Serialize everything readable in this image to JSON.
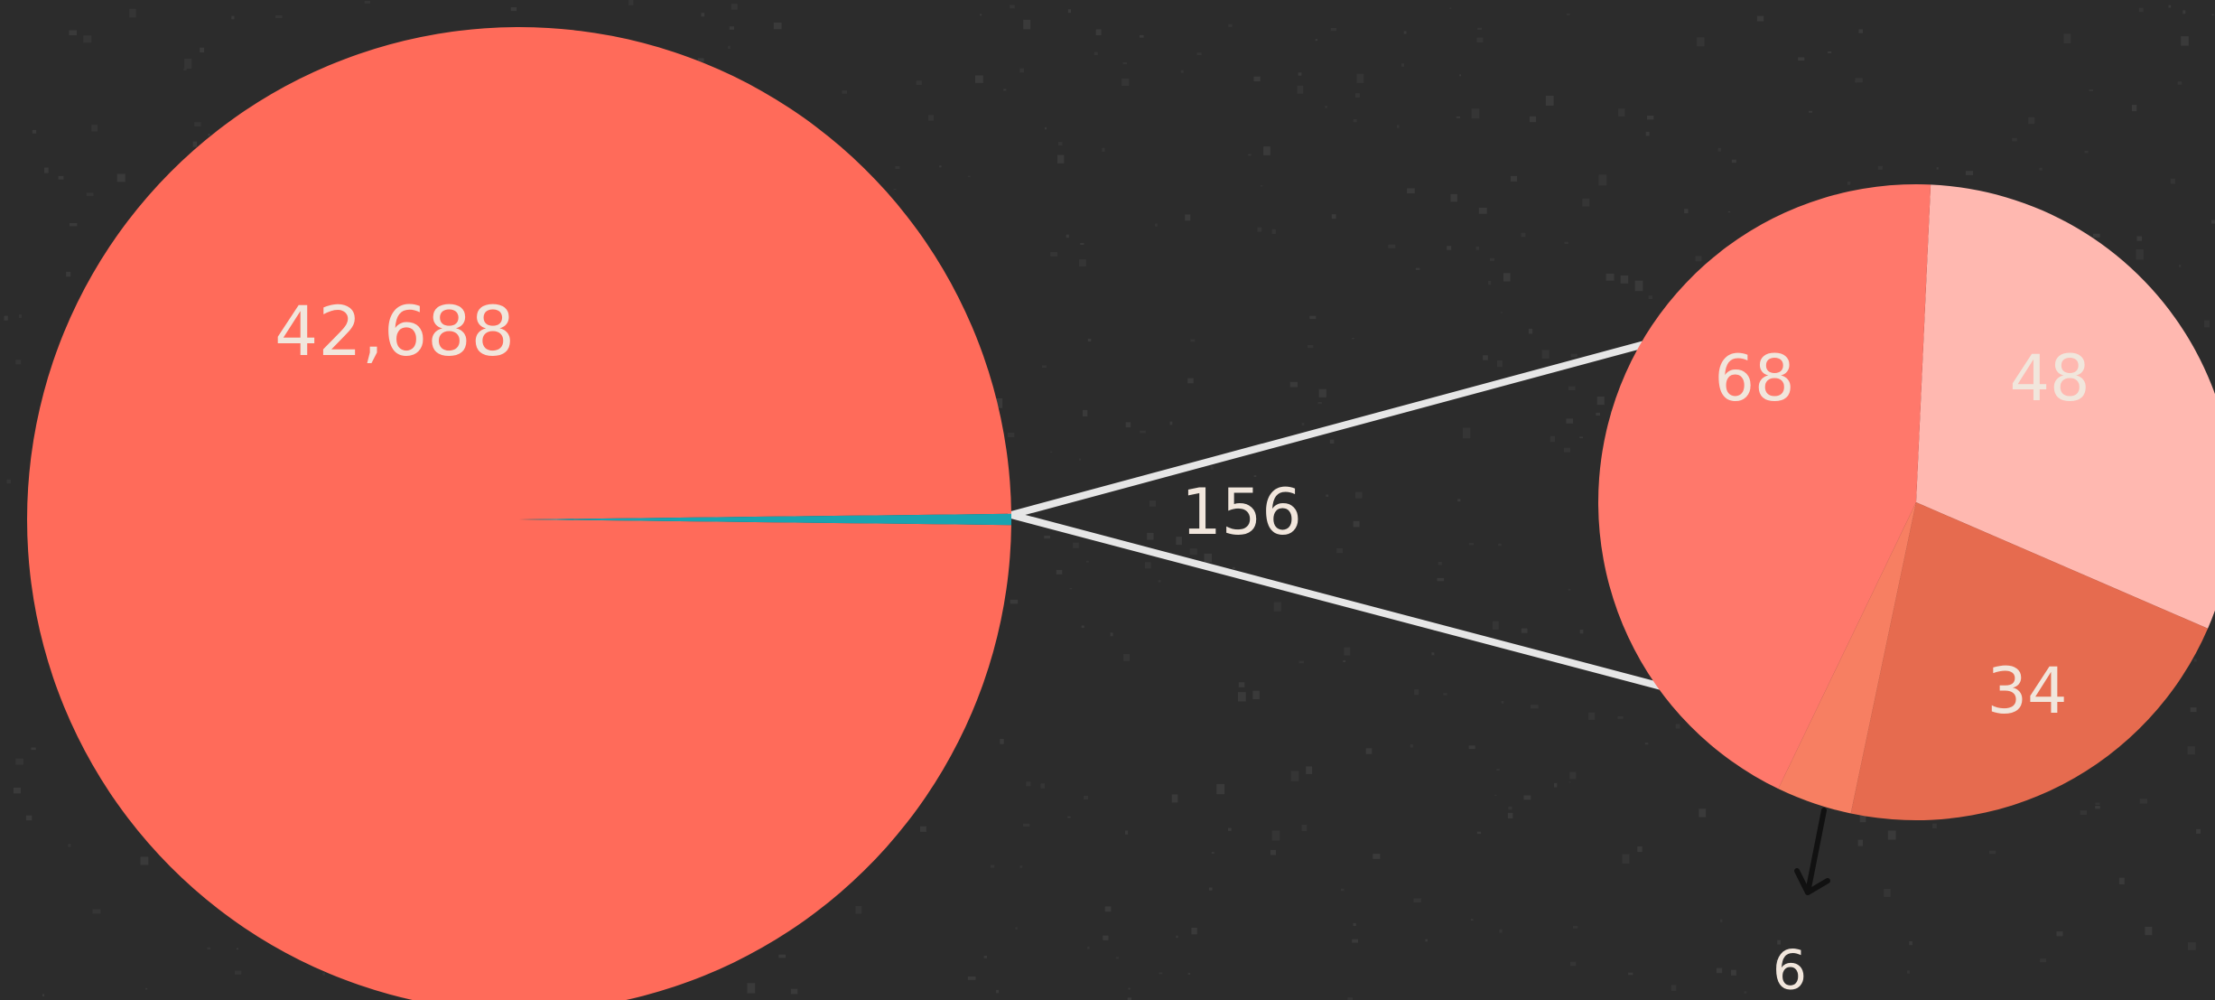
{
  "chart_data": {
    "type": "pie-of-pie",
    "main_pie": {
      "slices": [
        {
          "name": "",
          "value": 42688,
          "label": "42,688",
          "color": "#ff6b5a"
        },
        {
          "name": "",
          "value": 156,
          "label": "156",
          "color": "#1aa3b0"
        }
      ]
    },
    "detail_pie": {
      "total_label": "156",
      "slices": [
        {
          "value": 48,
          "label": "48",
          "color": "#ffb8b0"
        },
        {
          "value": 34,
          "label": "34",
          "color": "#e66b4f"
        },
        {
          "value": 6,
          "label": "6",
          "color": "#f77f62"
        },
        {
          "value": 68,
          "label": "68",
          "color": "#ff786b"
        }
      ]
    },
    "background": "#2c2c2c",
    "connector_color": "#e6e6e6"
  }
}
